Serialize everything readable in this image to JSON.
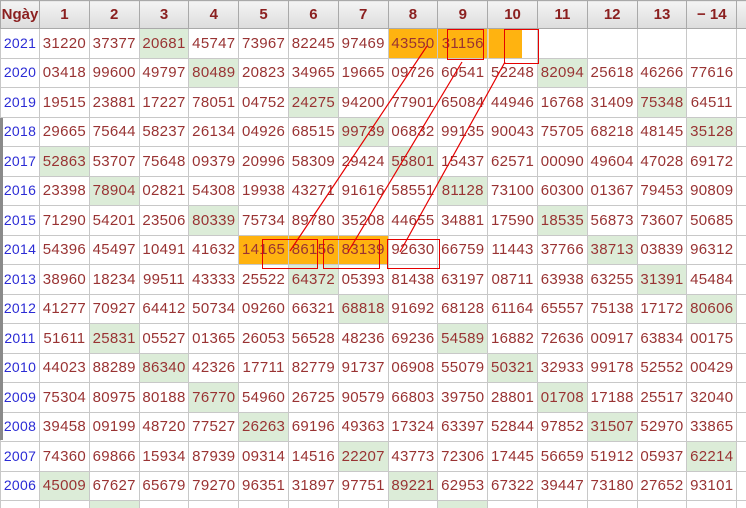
{
  "colors": {
    "value_text": "#993333",
    "header_text": "#8b1f1f",
    "year_link": "#2b2bd5",
    "green_highlight": "#dcecd8",
    "orange_highlight": "#ffb310",
    "annotation_red": "#e60000",
    "grid_line": "#c8c8c8"
  },
  "table": {
    "corner_label": "Ngày",
    "columns": [
      "1",
      "2",
      "3",
      "4",
      "5",
      "6",
      "7",
      "8",
      "9",
      "10",
      "11",
      "12",
      "13",
      "− 14"
    ],
    "rows": [
      {
        "year": "2021",
        "values": [
          "31220",
          "37377",
          "20681",
          "45747",
          "73967",
          "82245",
          "97469",
          "43550",
          "31156",
          "",
          "",
          "",
          "",
          ""
        ],
        "green": [
          3
        ],
        "orange": [
          8,
          9
        ],
        "orange_partial": [
          10
        ]
      },
      {
        "year": "2020",
        "values": [
          "03418",
          "99600",
          "49797",
          "80489",
          "20823",
          "34965",
          "19665",
          "09726",
          "60541",
          "52248",
          "82094",
          "25618",
          "46266",
          "77616"
        ],
        "green": [
          4,
          11
        ],
        "orange": [],
        "orange_partial": []
      },
      {
        "year": "2019",
        "values": [
          "19515",
          "23881",
          "17227",
          "78051",
          "04752",
          "24275",
          "94200",
          "77901",
          "65084",
          "44946",
          "16768",
          "31409",
          "75348",
          "64511"
        ],
        "green": [
          6,
          13
        ],
        "orange": [],
        "orange_partial": []
      },
      {
        "year": "2018",
        "values": [
          "29665",
          "75644",
          "58237",
          "26134",
          "04926",
          "68515",
          "99739",
          "06832",
          "99135",
          "90043",
          "75705",
          "68218",
          "48145",
          "35128"
        ],
        "green": [
          7,
          14
        ],
        "orange": [],
        "orange_partial": []
      },
      {
        "year": "2017",
        "values": [
          "52863",
          "53707",
          "75648",
          "09379",
          "20996",
          "58309",
          "29424",
          "55801",
          "15437",
          "62571",
          "00090",
          "49604",
          "47028",
          "69172"
        ],
        "green": [
          1,
          8
        ],
        "orange": [],
        "orange_partial": []
      },
      {
        "year": "2016",
        "values": [
          "23398",
          "78904",
          "02821",
          "54308",
          "19938",
          "43271",
          "91616",
          "58551",
          "81128",
          "73100",
          "60300",
          "01367",
          "79453",
          "90809"
        ],
        "green": [
          2,
          9
        ],
        "orange": [],
        "orange_partial": []
      },
      {
        "year": "2015",
        "values": [
          "71290",
          "54201",
          "23506",
          "80339",
          "75734",
          "89780",
          "35208",
          "44655",
          "34881",
          "17590",
          "18535",
          "56873",
          "73607",
          "50685"
        ],
        "green": [
          4,
          11
        ],
        "orange": [],
        "orange_partial": []
      },
      {
        "year": "2014",
        "values": [
          "54396",
          "45497",
          "10491",
          "41632",
          "14165",
          "86156",
          "83139",
          "92630",
          "66759",
          "11443",
          "37766",
          "38713",
          "03839",
          "96312"
        ],
        "green": [
          12
        ],
        "orange": [
          5,
          6,
          7
        ],
        "orange_partial": []
      },
      {
        "year": "2013",
        "values": [
          "38960",
          "18234",
          "99511",
          "43333",
          "25522",
          "64372",
          "05393",
          "81438",
          "63197",
          "08711",
          "63938",
          "63255",
          "31391",
          "45484"
        ],
        "green": [
          6,
          13
        ],
        "orange": [],
        "orange_partial": []
      },
      {
        "year": "2012",
        "values": [
          "41277",
          "70927",
          "64412",
          "50734",
          "09260",
          "66321",
          "68818",
          "91692",
          "68128",
          "61164",
          "65557",
          "75138",
          "17172",
          "80606"
        ],
        "green": [
          7,
          14
        ],
        "orange": [],
        "orange_partial": []
      },
      {
        "year": "2011",
        "values": [
          "51611",
          "25831",
          "05527",
          "01365",
          "26053",
          "56528",
          "48236",
          "69236",
          "54589",
          "16882",
          "72636",
          "00917",
          "63834",
          "00175"
        ],
        "green": [
          2,
          9
        ],
        "orange": [],
        "orange_partial": []
      },
      {
        "year": "2010",
        "values": [
          "44023",
          "88289",
          "86340",
          "42326",
          "17711",
          "82779",
          "91737",
          "06908",
          "55079",
          "50321",
          "32933",
          "99178",
          "52552",
          "00429"
        ],
        "green": [
          3,
          10
        ],
        "orange": [],
        "orange_partial": []
      },
      {
        "year": "2009",
        "values": [
          "75304",
          "80975",
          "80188",
          "76770",
          "54960",
          "26725",
          "90579",
          "66803",
          "39750",
          "28801",
          "01708",
          "17188",
          "25517",
          "32040"
        ],
        "green": [
          4,
          11
        ],
        "orange": [],
        "orange_partial": []
      },
      {
        "year": "2008",
        "values": [
          "39458",
          "09199",
          "48720",
          "77527",
          "26263",
          "69196",
          "49363",
          "17324",
          "63397",
          "52844",
          "97852",
          "31507",
          "52970",
          "33865"
        ],
        "green": [
          5,
          12
        ],
        "orange": [],
        "orange_partial": []
      },
      {
        "year": "2007",
        "values": [
          "74360",
          "69866",
          "15934",
          "87939",
          "09314",
          "14516",
          "22207",
          "43773",
          "72306",
          "17445",
          "56659",
          "51912",
          "05937",
          "62214"
        ],
        "green": [
          7,
          14
        ],
        "orange": [],
        "orange_partial": []
      },
      {
        "year": "2006",
        "values": [
          "45009",
          "67627",
          "65679",
          "79270",
          "96351",
          "31897",
          "97751",
          "89221",
          "62953",
          "67322",
          "39447",
          "73180",
          "27652",
          "93101"
        ],
        "green": [
          1,
          8
        ],
        "orange": [],
        "orange_partial": []
      }
    ],
    "partial_next_row": {
      "green": [
        2,
        9
      ]
    }
  }
}
